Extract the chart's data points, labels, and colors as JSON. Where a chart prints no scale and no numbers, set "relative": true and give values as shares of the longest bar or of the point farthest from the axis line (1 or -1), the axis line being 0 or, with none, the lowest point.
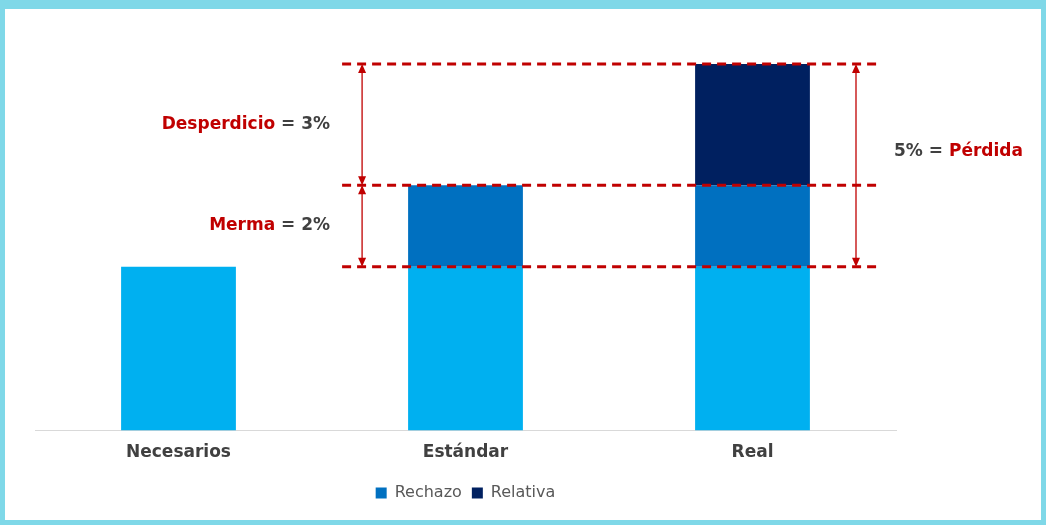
{
  "chart_data": {
    "type": "bar",
    "stacked": true,
    "relative": true,
    "categories": [
      "Necesarios",
      "Estándar",
      "Real"
    ],
    "series": [
      {
        "color": "#00b0f0",
        "values": [
          0.447,
          0.447,
          0.447
        ]
      },
      {
        "name": "Rechazo",
        "color": "#0070c0",
        "values": [
          null,
          0.222,
          0.222
        ]
      },
      {
        "name": "Relativa",
        "color": "#002060",
        "values": [
          null,
          null,
          0.331
        ]
      }
    ],
    "ref_lines": [
      {
        "axis": "y",
        "value": 0.447,
        "color": "#c00000",
        "line_style": "dashed"
      },
      {
        "axis": "y",
        "value": 0.669,
        "color": "#c00000",
        "line_style": "dashed"
      },
      {
        "axis": "y",
        "value": 1,
        "color": "#c00000",
        "line_style": "dashed"
      }
    ],
    "annotations": [
      "Desperdicio = 3%",
      "Merma = 2%",
      "5% = Pérdida"
    ],
    "legend": "bottom",
    "grid": false
  }
}
